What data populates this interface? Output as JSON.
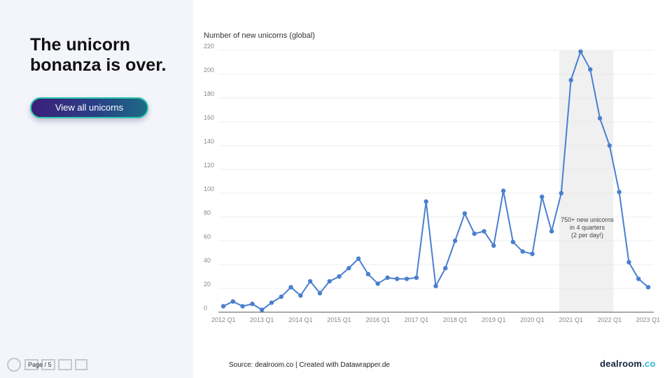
{
  "headline": {
    "line1": "The unicorn",
    "line2": "bonanza is over."
  },
  "cta": {
    "label": "View all unicorns"
  },
  "footer": {
    "page": "Page / 5",
    "source": "Source: dealroom.co | Created with Datawrapper.de",
    "brand_name": "dealroom",
    "brand_suffix": ".co"
  },
  "colors": {
    "line": "#4a7fd0",
    "highlight": "#f0f0f0",
    "gridline": "#e6e6e6"
  },
  "chart_data": {
    "type": "line",
    "title": "Number of new unicorns (global)",
    "xlabel": "",
    "ylabel": "",
    "ylim": [
      0,
      220
    ],
    "y_ticks": [
      0,
      20,
      40,
      60,
      80,
      100,
      120,
      140,
      160,
      180,
      200,
      220
    ],
    "x_tick_labels": [
      "2012 Q1",
      "2013 Q1",
      "2014 Q1",
      "2015 Q1",
      "2016 Q1",
      "2017 Q1",
      "2018 Q1",
      "2019 Q1",
      "2020 Q1",
      "2021 Q1",
      "2022 Q1",
      "2023 Q1"
    ],
    "grid": true,
    "legend": "none",
    "series": [
      {
        "values": [
          5,
          9,
          5,
          7,
          2,
          8,
          13,
          21,
          14,
          26,
          16,
          26,
          30,
          37,
          45,
          32,
          24,
          29,
          28,
          28,
          29,
          93,
          22,
          37,
          60,
          83,
          66,
          68,
          56,
          102,
          59,
          51,
          49,
          97,
          68,
          100,
          195,
          219,
          204,
          163,
          140,
          101,
          42,
          28,
          21
        ]
      }
    ],
    "highlight_range": {
      "start_index": 36,
      "end_index": 40
    },
    "annotation": {
      "lines": [
        "750+ new unicorns",
        "in 4 quarters",
        "(2 per day!)"
      ]
    }
  }
}
